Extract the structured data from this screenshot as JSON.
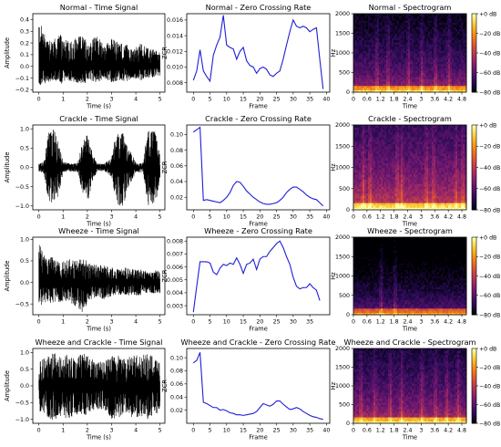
{
  "colors": {
    "time_signal": "#000000",
    "zcr_line": "#1f1fd6",
    "axes": "#000000",
    "spec_colormap": [
      "#000004",
      "#280b54",
      "#65156e",
      "#9f2a63",
      "#d44842",
      "#f57d15",
      "#fac228",
      "#fcffa4"
    ]
  },
  "chart_data": [
    {
      "type": "line",
      "signal": "time",
      "title": "Normal - Time Signal",
      "xlabel": "Time (s)",
      "ylabel": "Amplitude",
      "xlim": [
        -0.25,
        5.2
      ],
      "ylim": [
        -0.22,
        0.45
      ],
      "xticks": [
        0,
        1,
        2,
        3,
        4,
        5
      ],
      "xtick_labels": [
        "0",
        "1",
        "2",
        "3",
        "4",
        "5"
      ],
      "yticks": [
        -0.2,
        -0.1,
        0.0,
        0.1,
        0.2,
        0.3,
        0.4
      ],
      "ytick_labels": [
        "−0.2",
        "−0.1",
        "0.0",
        "0.1",
        "0.2",
        "0.3",
        "0.4"
      ],
      "envelope": [
        [
          0,
          0.4,
          -0.17
        ],
        [
          0.3,
          0.25,
          -0.14
        ],
        [
          0.6,
          0.24,
          -0.12
        ],
        [
          0.9,
          0.27,
          -0.15
        ],
        [
          1.2,
          0.22,
          -0.12
        ],
        [
          1.5,
          0.25,
          -0.14
        ],
        [
          1.8,
          0.26,
          -0.15
        ],
        [
          2.1,
          0.22,
          -0.13
        ],
        [
          2.4,
          0.26,
          -0.14
        ],
        [
          2.7,
          0.18,
          -0.1
        ],
        [
          3.0,
          0.24,
          -0.14
        ],
        [
          3.3,
          0.21,
          -0.12
        ],
        [
          3.6,
          0.19,
          -0.13
        ],
        [
          3.9,
          0.14,
          -0.1
        ],
        [
          4.2,
          0.2,
          -0.12
        ],
        [
          4.5,
          0.16,
          -0.1
        ],
        [
          4.8,
          0.14,
          -0.09
        ],
        [
          5.0,
          0.12,
          -0.08
        ]
      ]
    },
    {
      "type": "line",
      "signal": "zcr",
      "title": "Normal - Zero Crossing Rate",
      "xlabel": "Frame",
      "ylabel": "ZCR",
      "xlim": [
        -2,
        41
      ],
      "ylim": [
        0.0068,
        0.0168
      ],
      "xticks": [
        0,
        5,
        10,
        15,
        20,
        25,
        30,
        35,
        40
      ],
      "xtick_labels": [
        "0",
        "5",
        "10",
        "15",
        "20",
        "25",
        "30",
        "35",
        "40"
      ],
      "yticks": [
        0.008,
        0.01,
        0.012,
        0.014,
        0.016
      ],
      "ytick_labels": [
        "0.008",
        "0.010",
        "0.012",
        "0.014",
        "0.016"
      ],
      "x": [
        0,
        1,
        2,
        3,
        4,
        5,
        6,
        7,
        8,
        9,
        10,
        11,
        12,
        13,
        14,
        15,
        16,
        17,
        18,
        19,
        20,
        21,
        22,
        23,
        24,
        25,
        26,
        27,
        28,
        29,
        30,
        31,
        32,
        33,
        34,
        35,
        36,
        37,
        38,
        39
      ],
      "y": [
        0.0083,
        0.0095,
        0.0122,
        0.0095,
        0.0088,
        0.0082,
        0.0115,
        0.0128,
        0.0138,
        0.0166,
        0.0128,
        0.0125,
        0.0123,
        0.011,
        0.012,
        0.0125,
        0.0108,
        0.0102,
        0.01,
        0.0092,
        0.0098,
        0.01,
        0.0097,
        0.009,
        0.0088,
        0.0092,
        0.0095,
        0.011,
        0.0128,
        0.0145,
        0.016,
        0.0152,
        0.015,
        0.0152,
        0.015,
        0.0145,
        0.0148,
        0.015,
        0.011,
        0.0072
      ]
    },
    {
      "type": "heatmap",
      "signal": "spectrogram",
      "title": "Normal - Spectrogram",
      "xlabel": "Time",
      "ylabel": "Hz",
      "xlim": [
        0,
        5
      ],
      "ylim": [
        0,
        2000
      ],
      "xticks": [
        0,
        0.6,
        1.2,
        1.8,
        2.4,
        3.0,
        3.6,
        4.2,
        4.8
      ],
      "xtick_labels": [
        "0",
        "0.6",
        "1.2",
        "1.8",
        "2.4",
        "3",
        "3.6",
        "4.2",
        "4.8"
      ],
      "yticks": [
        0,
        500,
        1000,
        1500,
        2000
      ],
      "ytick_labels": [
        "0",
        "500",
        "1000",
        "1500",
        "2000"
      ],
      "colorbar_ticks": [
        "+0 dB",
        "−20 dB",
        "−40 dB",
        "−60 dB",
        "−80 dB"
      ],
      "brightness": "dark",
      "burst_times": [
        1.0,
        1.5,
        2.4,
        3.0,
        3.6,
        4.2
      ]
    },
    {
      "type": "line",
      "signal": "time",
      "title": "Crackle - Time Signal",
      "xlabel": "Time (s)",
      "ylabel": "Amplitude",
      "xlim": [
        -0.25,
        5.2
      ],
      "ylim": [
        -1.1,
        1.1
      ],
      "xticks": [
        0,
        1,
        2,
        3,
        4,
        5
      ],
      "xtick_labels": [
        "0",
        "1",
        "2",
        "3",
        "4",
        "5"
      ],
      "yticks": [
        -1.0,
        -0.5,
        0.0,
        0.5,
        1.0
      ],
      "ytick_labels": [
        "−1.0",
        "−0.5",
        "0.0",
        "0.5",
        "1.0"
      ],
      "envelope": [
        [
          0,
          0.1,
          -0.1
        ],
        [
          0.2,
          0.15,
          -0.15
        ],
        [
          0.4,
          0.9,
          -0.9
        ],
        [
          0.6,
          1.0,
          -1.0
        ],
        [
          0.8,
          0.7,
          -0.8
        ],
        [
          1.0,
          0.15,
          -0.15
        ],
        [
          1.3,
          0.1,
          -0.1
        ],
        [
          1.6,
          0.12,
          -0.12
        ],
        [
          1.8,
          0.65,
          -0.65
        ],
        [
          2.0,
          0.9,
          -0.95
        ],
        [
          2.2,
          0.4,
          -0.4
        ],
        [
          2.4,
          0.1,
          -0.1
        ],
        [
          2.7,
          0.1,
          -0.1
        ],
        [
          3.0,
          0.25,
          -0.25
        ],
        [
          3.2,
          1.0,
          -1.0
        ],
        [
          3.5,
          0.9,
          -1.0
        ],
        [
          3.7,
          0.5,
          -0.5
        ],
        [
          4.0,
          0.15,
          -0.15
        ],
        [
          4.3,
          0.12,
          -0.12
        ],
        [
          4.5,
          1.0,
          -1.0
        ],
        [
          4.8,
          0.95,
          -1.0
        ],
        [
          5.0,
          0.3,
          -0.3
        ]
      ]
    },
    {
      "type": "line",
      "signal": "zcr",
      "title": "Crackle - Zero Crossing Rate",
      "xlabel": "Frame",
      "ylabel": "ZCR",
      "xlim": [
        -2,
        41
      ],
      "ylim": [
        0.004,
        0.112
      ],
      "xticks": [
        0,
        5,
        10,
        15,
        20,
        25,
        30,
        35,
        40
      ],
      "xtick_labels": [
        "0",
        "5",
        "10",
        "15",
        "20",
        "25",
        "30",
        "35",
        "40"
      ],
      "yticks": [
        0.02,
        0.04,
        0.06,
        0.08,
        0.1
      ],
      "ytick_labels": [
        "0.02",
        "0.04",
        "0.06",
        "0.08",
        "0.10"
      ],
      "x": [
        0,
        1,
        2,
        3,
        4,
        5,
        6,
        7,
        8,
        9,
        10,
        11,
        12,
        13,
        14,
        15,
        16,
        17,
        18,
        19,
        20,
        21,
        22,
        23,
        24,
        25,
        26,
        27,
        28,
        29,
        30,
        31,
        32,
        33,
        34,
        35,
        36,
        37,
        38,
        39
      ],
      "y": [
        0.103,
        0.106,
        0.109,
        0.016,
        0.017,
        0.016,
        0.015,
        0.014,
        0.013,
        0.016,
        0.02,
        0.026,
        0.035,
        0.04,
        0.039,
        0.034,
        0.028,
        0.024,
        0.02,
        0.017,
        0.014,
        0.012,
        0.011,
        0.011,
        0.012,
        0.013,
        0.016,
        0.02,
        0.026,
        0.03,
        0.033,
        0.033,
        0.03,
        0.027,
        0.023,
        0.02,
        0.018,
        0.017,
        0.013,
        0.009
      ]
    },
    {
      "type": "heatmap",
      "signal": "spectrogram",
      "title": "Crackle - Spectrogram",
      "xlabel": "Time",
      "ylabel": "Hz",
      "xlim": [
        0,
        5
      ],
      "ylim": [
        0,
        2000
      ],
      "xticks": [
        0,
        0.6,
        1.2,
        1.8,
        2.4,
        3.0,
        3.6,
        4.2,
        4.8
      ],
      "xtick_labels": [
        "0",
        "0.6",
        "1.2",
        "1.8",
        "2.4",
        "3",
        "3.6",
        "4.2",
        "4.8"
      ],
      "yticks": [
        0,
        500,
        1000,
        1500,
        2000
      ],
      "ytick_labels": [
        "0",
        "500",
        "1000",
        "1500",
        "2000"
      ],
      "colorbar_ticks": [
        "+0 dB",
        "−20 dB",
        "−40 dB",
        "−60 dB",
        "−80 dB"
      ],
      "brightness": "bright",
      "burst_times": [
        0.4,
        0.7,
        1.9,
        2.1,
        3.2,
        3.5,
        4.5,
        4.8
      ]
    },
    {
      "type": "line",
      "signal": "time",
      "title": "Wheeze - Time Signal",
      "xlabel": "Time (s)",
      "ylabel": "Amplitude",
      "xlim": [
        -0.25,
        5.2
      ],
      "ylim": [
        -0.75,
        1.05
      ],
      "xticks": [
        0,
        1,
        2,
        3,
        4,
        5
      ],
      "xtick_labels": [
        "0",
        "1",
        "2",
        "3",
        "4",
        "5"
      ],
      "yticks": [
        -0.5,
        0.0,
        0.5,
        1.0
      ],
      "ytick_labels": [
        "−0.5",
        "0.0",
        "0.5",
        "1.0"
      ],
      "envelope": [
        [
          0,
          0.95,
          -0.6
        ],
        [
          0.3,
          0.55,
          -0.45
        ],
        [
          0.6,
          0.6,
          -0.5
        ],
        [
          0.9,
          0.45,
          -0.45
        ],
        [
          1.2,
          0.55,
          -0.45
        ],
        [
          1.5,
          0.5,
          -0.55
        ],
        [
          1.8,
          0.6,
          -0.7
        ],
        [
          2.1,
          0.45,
          -0.4
        ],
        [
          2.4,
          0.4,
          -0.35
        ],
        [
          2.7,
          0.4,
          -0.4
        ],
        [
          3.0,
          0.35,
          -0.35
        ],
        [
          3.3,
          0.3,
          -0.3
        ],
        [
          3.6,
          0.35,
          -0.3
        ],
        [
          3.9,
          0.3,
          -0.3
        ],
        [
          4.2,
          0.3,
          -0.3
        ],
        [
          4.5,
          0.25,
          -0.25
        ],
        [
          4.8,
          0.3,
          -0.25
        ],
        [
          5.0,
          0.25,
          -0.25
        ]
      ]
    },
    {
      "type": "line",
      "signal": "zcr",
      "title": "Wheeze - Zero Crossing Rate",
      "xlabel": "Frame",
      "ylabel": "ZCR",
      "xlim": [
        -2,
        41
      ],
      "ylim": [
        0.0023,
        0.0083
      ],
      "xticks": [
        0,
        5,
        10,
        15,
        20,
        25,
        30,
        35
      ],
      "xtick_labels": [
        "0",
        "5",
        "10",
        "15",
        "20",
        "25",
        "30",
        "35"
      ],
      "yticks": [
        0.003,
        0.004,
        0.005,
        0.006,
        0.007,
        0.008
      ],
      "ytick_labels": [
        "0.003",
        "0.004",
        "0.005",
        "0.006",
        "0.007",
        "0.008"
      ],
      "x": [
        0,
        1,
        2,
        3,
        4,
        5,
        6,
        7,
        8,
        9,
        10,
        11,
        12,
        13,
        14,
        15,
        16,
        17,
        18,
        19,
        20,
        21,
        22,
        23,
        24,
        25,
        26,
        27,
        28,
        29,
        30,
        31,
        32,
        33,
        34,
        35,
        36,
        37,
        38
      ],
      "y": [
        0.0025,
        0.0045,
        0.0064,
        0.0064,
        0.0064,
        0.0063,
        0.0056,
        0.0054,
        0.0059,
        0.0062,
        0.0061,
        0.0063,
        0.0062,
        0.0067,
        0.0062,
        0.0055,
        0.0062,
        0.0063,
        0.0066,
        0.0058,
        0.0066,
        0.0068,
        0.0068,
        0.0072,
        0.0075,
        0.0078,
        0.008,
        0.0075,
        0.0068,
        0.0062,
        0.0052,
        0.0045,
        0.0043,
        0.0044,
        0.0044,
        0.0047,
        0.0044,
        0.0042,
        0.0034
      ]
    },
    {
      "type": "heatmap",
      "signal": "spectrogram",
      "title": "Wheeze - Spectrogram",
      "xlabel": "Time",
      "ylabel": "Hz",
      "xlim": [
        0,
        5
      ],
      "ylim": [
        0,
        2000
      ],
      "xticks": [
        0,
        0.6,
        1.2,
        1.8,
        2.4,
        3.0,
        3.6,
        4.2,
        4.8
      ],
      "xtick_labels": [
        "0",
        "0.6",
        "1.2",
        "1.8",
        "2.4",
        "3",
        "3.6",
        "4.2",
        "4.8"
      ],
      "yticks": [
        0,
        500,
        1000,
        1500,
        2000
      ],
      "ytick_labels": [
        "0",
        "500",
        "1000",
        "1500",
        "2000"
      ],
      "colorbar_ticks": [
        "+0 dB",
        "−20 dB",
        "−40 dB",
        "−60 dB",
        "−80 dB"
      ],
      "brightness": "very_dark",
      "burst_times": [
        1.2,
        1.8
      ]
    },
    {
      "type": "line",
      "signal": "time",
      "title": "Wheeze and Crackle - Time Signal",
      "xlabel": "Time (s)",
      "ylabel": "Amplitude",
      "xlim": [
        -0.25,
        5.2
      ],
      "ylim": [
        -1.12,
        1.12
      ],
      "xticks": [
        0,
        1,
        2,
        3,
        4,
        5
      ],
      "xtick_labels": [
        "0",
        "1",
        "2",
        "3",
        "4",
        "5"
      ],
      "yticks": [
        -1.0,
        -0.5,
        0.0,
        0.5,
        1.0
      ],
      "ytick_labels": [
        "−1.0",
        "−0.5",
        "0.0",
        "0.5",
        "1.0"
      ],
      "envelope": [
        [
          0,
          0.75,
          -0.8
        ],
        [
          0.3,
          0.85,
          -0.9
        ],
        [
          0.6,
          1.0,
          -1.05
        ],
        [
          0.9,
          0.9,
          -0.9
        ],
        [
          1.2,
          0.95,
          -1.0
        ],
        [
          1.5,
          0.8,
          -0.85
        ],
        [
          1.8,
          1.0,
          -1.0
        ],
        [
          2.1,
          0.85,
          -0.8
        ],
        [
          2.4,
          0.7,
          -0.75
        ],
        [
          2.7,
          0.75,
          -0.7
        ],
        [
          3.0,
          0.9,
          -1.0
        ],
        [
          3.3,
          0.95,
          -0.95
        ],
        [
          3.6,
          0.8,
          -0.8
        ],
        [
          3.9,
          0.95,
          -1.0
        ],
        [
          4.2,
          0.9,
          -0.9
        ],
        [
          4.5,
          1.0,
          -1.0
        ],
        [
          4.8,
          0.85,
          -0.9
        ],
        [
          5.0,
          0.7,
          -0.7
        ]
      ]
    },
    {
      "type": "line",
      "signal": "zcr",
      "title": "Wheeze and Crackle - Zero Crossing Rate",
      "xlabel": "Frame",
      "ylabel": "ZCR",
      "xlim": [
        -2,
        41
      ],
      "ylim": [
        0.0,
        0.114
      ],
      "xticks": [
        0,
        5,
        10,
        15,
        20,
        25,
        30,
        35,
        40
      ],
      "xtick_labels": [
        "0",
        "5",
        "10",
        "15",
        "20",
        "25",
        "30",
        "35",
        "40"
      ],
      "yticks": [
        0.02,
        0.04,
        0.06,
        0.08,
        0.1
      ],
      "ytick_labels": [
        "0.02",
        "0.04",
        "0.06",
        "0.08",
        "0.10"
      ],
      "x": [
        0,
        1,
        2,
        3,
        4,
        5,
        6,
        7,
        8,
        9,
        10,
        11,
        12,
        13,
        14,
        15,
        16,
        17,
        18,
        19,
        20,
        21,
        22,
        23,
        24,
        25,
        26,
        27,
        28,
        29,
        30,
        31,
        32,
        33,
        34,
        35,
        36,
        37,
        38,
        39
      ],
      "y": [
        0.092,
        0.096,
        0.108,
        0.032,
        0.03,
        0.027,
        0.024,
        0.024,
        0.02,
        0.021,
        0.019,
        0.016,
        0.015,
        0.013,
        0.013,
        0.012,
        0.013,
        0.014,
        0.015,
        0.018,
        0.024,
        0.03,
        0.028,
        0.026,
        0.029,
        0.034,
        0.034,
        0.029,
        0.025,
        0.021,
        0.022,
        0.024,
        0.022,
        0.018,
        0.015,
        0.012,
        0.01,
        0.009,
        0.007,
        0.006
      ]
    },
    {
      "type": "heatmap",
      "signal": "spectrogram",
      "title": "Wheeze and Crackle - Spectrogram",
      "xlabel": "Time",
      "ylabel": "Hz",
      "xlim": [
        0,
        5
      ],
      "ylim": [
        0,
        2000
      ],
      "xticks": [
        0,
        0.6,
        1.2,
        1.8,
        2.4,
        3.0,
        3.6,
        4.2,
        4.8
      ],
      "xtick_labels": [
        "0",
        "0.6",
        "1.2",
        "1.8",
        "2.4",
        "3",
        "3.6",
        "4.2",
        "4.8"
      ],
      "yticks": [
        0,
        500,
        1000,
        1500,
        2000
      ],
      "ytick_labels": [
        "0",
        "500",
        "1000",
        "1500",
        "2000"
      ],
      "colorbar_ticks": [
        "+0 dB",
        "−20 dB",
        "−40 dB",
        "−60 dB",
        "−80 dB"
      ],
      "brightness": "medium",
      "burst_times": [
        0.3,
        0.9,
        1.6,
        2.1,
        3.0,
        3.6,
        4.1,
        4.6
      ]
    }
  ]
}
